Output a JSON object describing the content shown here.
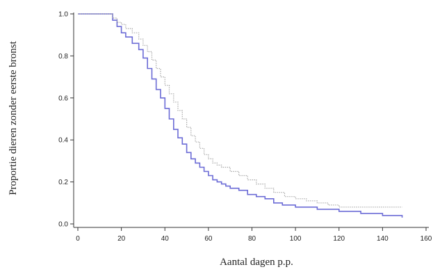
{
  "chart_data": {
    "type": "line",
    "title": "",
    "xlabel": "Aantal dagen p.p.",
    "ylabel": "Proportie dieren zonder eerste bronst",
    "xlim": [
      0,
      160
    ],
    "ylim": [
      0,
      1.0
    ],
    "xticks": [
      0,
      20,
      40,
      60,
      80,
      100,
      120,
      140,
      160
    ],
    "yticks": [
      0.0,
      0.2,
      0.4,
      0.6,
      0.8,
      1.0
    ],
    "xtick_labels": [
      "0",
      "20",
      "40",
      "60",
      "80",
      "100",
      "120",
      "140",
      "160"
    ],
    "ytick_labels": [
      "0.0",
      "0.2",
      "0.4",
      "0.6",
      "0.8",
      "1.0"
    ],
    "grid": false,
    "series": [
      {
        "color": "#6b6bd6",
        "style": "solid",
        "x": [
          0,
          15,
          16,
          18,
          20,
          22,
          25,
          28,
          30,
          32,
          34,
          36,
          38,
          40,
          42,
          44,
          46,
          48,
          50,
          52,
          54,
          56,
          58,
          60,
          62,
          64,
          66,
          68,
          70,
          74,
          78,
          82,
          86,
          90,
          94,
          100,
          105,
          110,
          115,
          120,
          125,
          130,
          135,
          140,
          145,
          149
        ],
        "values": [
          1.0,
          1.0,
          0.97,
          0.94,
          0.91,
          0.89,
          0.86,
          0.83,
          0.79,
          0.74,
          0.69,
          0.64,
          0.6,
          0.55,
          0.5,
          0.45,
          0.41,
          0.38,
          0.34,
          0.31,
          0.29,
          0.27,
          0.25,
          0.23,
          0.21,
          0.2,
          0.19,
          0.18,
          0.17,
          0.16,
          0.14,
          0.13,
          0.12,
          0.1,
          0.09,
          0.08,
          0.08,
          0.07,
          0.07,
          0.06,
          0.06,
          0.05,
          0.05,
          0.04,
          0.04,
          0.03
        ]
      },
      {
        "color": "#a8a8a8",
        "style": "dotted",
        "x": [
          0,
          15,
          16,
          18,
          20,
          22,
          25,
          28,
          30,
          32,
          34,
          36,
          38,
          40,
          42,
          44,
          46,
          48,
          50,
          52,
          54,
          56,
          58,
          60,
          62,
          64,
          66,
          70,
          74,
          78,
          82,
          86,
          90,
          95,
          100,
          105,
          110,
          115,
          120,
          125,
          130,
          135,
          140,
          145,
          149
        ],
        "values": [
          1.0,
          1.0,
          0.98,
          0.96,
          0.95,
          0.93,
          0.91,
          0.88,
          0.85,
          0.82,
          0.78,
          0.74,
          0.7,
          0.66,
          0.62,
          0.58,
          0.54,
          0.5,
          0.46,
          0.42,
          0.39,
          0.36,
          0.33,
          0.31,
          0.29,
          0.28,
          0.27,
          0.25,
          0.23,
          0.21,
          0.19,
          0.17,
          0.15,
          0.13,
          0.12,
          0.11,
          0.1,
          0.09,
          0.08,
          0.08,
          0.08,
          0.08,
          0.08,
          0.08,
          0.08
        ]
      }
    ]
  }
}
